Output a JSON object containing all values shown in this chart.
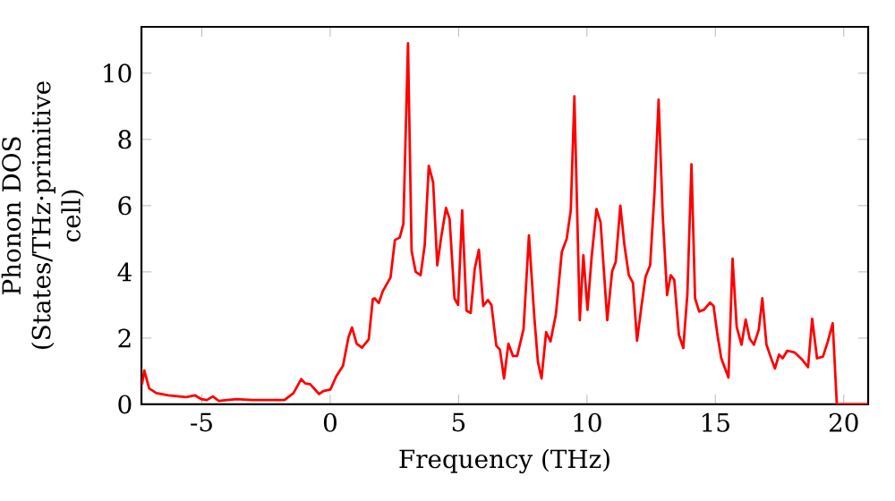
{
  "chart_data": {
    "type": "line",
    "xlabel": "Frequency (THz)",
    "ylabel": "Phonon DOS (States/THz·primitive cell)",
    "xlim": [
      -7.35,
      20.95
    ],
    "ylim": [
      0,
      11.4
    ],
    "xticks": [
      -5,
      0,
      5,
      10,
      15,
      20
    ],
    "yticks": [
      0,
      2,
      4,
      6,
      8,
      10
    ],
    "color": "#ff0000",
    "line_style": "solid",
    "x": [
      -7.33,
      -7.24,
      -7.05,
      -6.77,
      -6.31,
      -5.61,
      -5.26,
      -5.03,
      -4.8,
      -4.57,
      -4.33,
      -3.64,
      -3.06,
      -1.78,
      -1.43,
      -1.13,
      -0.97,
      -0.78,
      -0.43,
      -0.27,
      0.01,
      0.24,
      0.5,
      0.71,
      0.85,
      1.03,
      1.24,
      1.5,
      1.66,
      1.73,
      1.89,
      2.05,
      2.35,
      2.52,
      2.71,
      2.85,
      3.03,
      3.17,
      3.33,
      3.52,
      3.68,
      3.84,
      4.01,
      4.17,
      4.33,
      4.51,
      4.65,
      4.84,
      4.98,
      5.14,
      5.31,
      5.47,
      5.63,
      5.79,
      5.96,
      6.14,
      6.28,
      6.47,
      6.61,
      6.77,
      6.94,
      7.12,
      7.28,
      7.53,
      7.74,
      7.95,
      8.09,
      8.23,
      8.41,
      8.58,
      8.79,
      9.02,
      9.21,
      9.37,
      9.51,
      9.72,
      9.86,
      10.02,
      10.18,
      10.37,
      10.53,
      10.79,
      10.98,
      11.12,
      11.3,
      11.46,
      11.63,
      11.79,
      11.95,
      12.12,
      12.28,
      12.46,
      12.63,
      12.79,
      12.95,
      13.12,
      13.26,
      13.4,
      13.58,
      13.75,
      13.91,
      14.07,
      14.21,
      14.37,
      14.56,
      14.79,
      14.93,
      15.07,
      15.23,
      15.51,
      15.67,
      15.83,
      16.02,
      16.18,
      16.34,
      16.5,
      16.69,
      16.83,
      16.99,
      17.15,
      17.32,
      17.48,
      17.62,
      17.8,
      18.08,
      18.38,
      18.61,
      18.77,
      18.96,
      19.19,
      19.38,
      19.57,
      19.73,
      20.94
    ],
    "values": [
      0.6,
      1.02,
      0.48,
      0.34,
      0.27,
      0.22,
      0.27,
      0.16,
      0.13,
      0.24,
      0.1,
      0.16,
      0.13,
      0.13,
      0.34,
      0.76,
      0.63,
      0.61,
      0.31,
      0.4,
      0.45,
      0.85,
      1.17,
      2.02,
      2.32,
      1.83,
      1.71,
      1.96,
      3.18,
      3.2,
      3.06,
      3.42,
      3.83,
      4.96,
      5.04,
      5.45,
      10.9,
      4.63,
      4.0,
      3.9,
      4.8,
      7.2,
      6.7,
      4.2,
      5.08,
      5.93,
      5.6,
      3.2,
      3.0,
      5.86,
      2.83,
      2.76,
      4.1,
      4.67,
      2.97,
      3.15,
      3.0,
      1.77,
      1.65,
      0.78,
      1.83,
      1.46,
      1.46,
      2.27,
      5.1,
      2.63,
      1.28,
      0.78,
      2.18,
      1.9,
      2.72,
      4.6,
      5.0,
      5.86,
      9.3,
      2.54,
      4.5,
      2.85,
      4.43,
      5.9,
      5.5,
      2.54,
      4.02,
      4.3,
      6.0,
      4.8,
      3.9,
      3.67,
      1.92,
      2.95,
      3.85,
      4.2,
      6.4,
      9.2,
      5.7,
      3.3,
      3.9,
      3.76,
      2.1,
      1.7,
      3.33,
      7.25,
      3.2,
      2.8,
      2.86,
      3.07,
      2.97,
      2.16,
      1.39,
      0.81,
      4.4,
      2.34,
      1.8,
      2.56,
      1.98,
      1.8,
      2.25,
      3.2,
      1.8,
      1.44,
      1.08,
      1.5,
      1.39,
      1.62,
      1.57,
      1.35,
      1.12,
      2.58,
      1.39,
      1.44,
      1.9,
      2.45,
      0,
      0
    ]
  }
}
